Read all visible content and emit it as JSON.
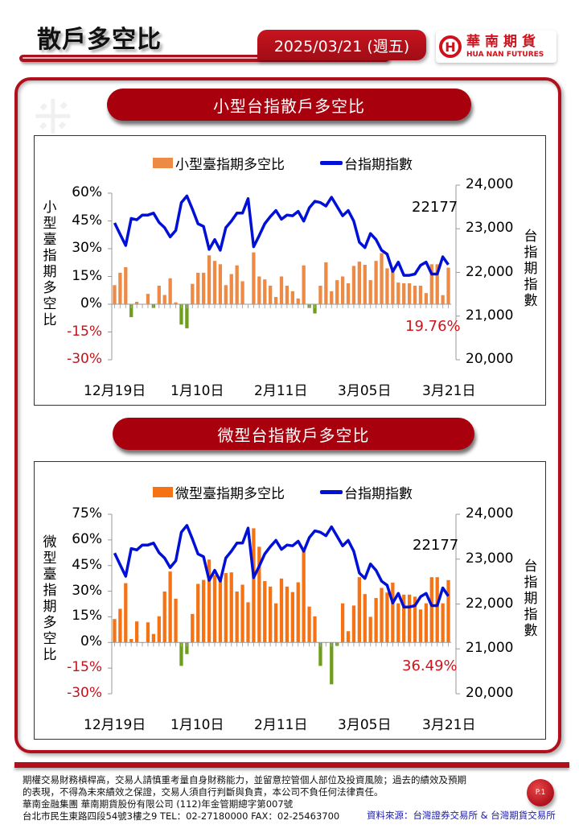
{
  "header": {
    "title": "散戶多空比",
    "date": "2025/03/21 (週五)",
    "logo_zh": "華南期貨",
    "logo_en": "HUA NAN FUTURES"
  },
  "sections": [
    {
      "title": "小型台指散戶多空比",
      "legend_bar": "小型臺指期多空比",
      "legend_line": "台指期指數",
      "left_axis_label": "小型臺指期多空比",
      "right_axis_label": "台指期指數",
      "left_ticks": [
        "60%",
        "45%",
        "30%",
        "15%",
        "0%",
        "-15%",
        "-30%"
      ],
      "right_ticks": [
        "24,000",
        "23,000",
        "22,000",
        "21,000",
        "20,000"
      ],
      "x_ticks": [
        "12月19日",
        "1月10日",
        "2月11日",
        "3月05日",
        "3月21日"
      ],
      "last_index_label": "22177",
      "last_ratio_label": "19.76%"
    },
    {
      "title": "微型台指散戶多空比",
      "legend_bar": "微型臺指期多空比",
      "legend_line": "台指期指數",
      "left_axis_label": "微型臺指期多空比",
      "right_axis_label": "台指期指數",
      "left_ticks": [
        "75%",
        "60%",
        "45%",
        "30%",
        "15%",
        "0%",
        "-15%",
        "-30%"
      ],
      "right_ticks": [
        "24,000",
        "23,000",
        "22,000",
        "21,000",
        "20,000"
      ],
      "x_ticks": [
        "12月19日",
        "1月10日",
        "2月11日",
        "3月05日",
        "3月21日"
      ],
      "last_index_label": "22177",
      "last_ratio_label": "36.49%"
    }
  ],
  "footer": {
    "disclaimer_1": "期權交易財務槓桿高，交易人請慎重考量自身財務能力，並留意控管個人部位及投資風險；過去的績效及預期",
    "disclaimer_2": "的表現，不得為未來績效之保證，交易人須自行判斷與負責，本公司不負任何法律責任。",
    "company": "華南金融集團 華南期貨股份有限公司 (112)年金管期總字第007號",
    "address": "台北市民生東路四段54號3樓之9  TEL：02-27180000  FAX：02-25463700",
    "source": "資料來源：台灣證券交易所 & 台灣期貨交易所",
    "page": "P.1"
  },
  "colors": {
    "brand_red": "#b0101c",
    "bar_mini": "#ed8a45",
    "bar_micro": "#f57314",
    "bar_negative": "#6e9e1c",
    "index_line": "#0010d6",
    "negative_tick": "#c0141c"
  },
  "chart_data": [
    {
      "type": "bar+line",
      "title": "小型台指散戶多空比",
      "x_tick_labels": [
        "12月19日",
        "1月10日",
        "2月11日",
        "3月05日",
        "3月21日"
      ],
      "n_points": 61,
      "legend": [
        "小型臺指期多空比",
        "台指期指數"
      ],
      "ylabel_left": "小型臺指期多空比",
      "ylabel_right": "台指期指數",
      "ylim_left": [
        -30,
        60
      ],
      "ylim_right": [
        20000,
        24000
      ],
      "grid": false,
      "legend_position": "top",
      "series": [
        {
          "name": "小型臺指期多空比",
          "type": "bar",
          "axis": "left",
          "unit": "%",
          "values": [
            10.3,
            17,
            20,
            -7,
            1.3,
            0,
            5.6,
            -2,
            10,
            5,
            14,
            1,
            -11,
            -13,
            11,
            17,
            17,
            26.4,
            23.4,
            21.6,
            10.3,
            16.3,
            21,
            12.4,
            0,
            28,
            15,
            13.4,
            10,
            3.9,
            15,
            10,
            7,
            3.1,
            21,
            -2,
            -5,
            10,
            22.6,
            7,
            13,
            15,
            11.3,
            20.7,
            23,
            21.3,
            13,
            23.4,
            27.6,
            19.4,
            18,
            11.7,
            11.3,
            11.3,
            10,
            10,
            6,
            21.6,
            21.6,
            4.9,
            19.76
          ]
        },
        {
          "name": "台指期指數",
          "type": "line",
          "axis": "right",
          "values": [
            23133,
            22873,
            22618,
            23236,
            23206,
            23315,
            23315,
            23358,
            23145,
            23024,
            22812,
            22964,
            23600,
            23752,
            23448,
            23115,
            23055,
            22527,
            22752,
            22509,
            23024,
            23176,
            23358,
            23358,
            23691,
            22588,
            22842,
            23115,
            23279,
            23418,
            23218,
            23315,
            23297,
            23400,
            23176,
            23479,
            23630,
            23600,
            23521,
            23721,
            23509,
            23297,
            23418,
            23176,
            22691,
            22570,
            22891,
            22752,
            22509,
            22418,
            22024,
            22236,
            21933,
            21933,
            21964,
            22164,
            22236,
            21964,
            21964,
            22358,
            22177
          ]
        }
      ],
      "annotations": [
        "22177",
        "19.76%"
      ]
    },
    {
      "type": "bar+line",
      "title": "微型台指散戶多空比",
      "x_tick_labels": [
        "12月19日",
        "1月10日",
        "2月11日",
        "3月05日",
        "3月21日"
      ],
      "n_points": 61,
      "legend": [
        "微型臺指期多空比",
        "台指期指數"
      ],
      "ylabel_left": "微型臺指期多空比",
      "ylabel_right": "台指期指數",
      "ylim_left": [
        -30,
        75
      ],
      "ylim_right": [
        20000,
        24000
      ],
      "grid": false,
      "legend_position": "top",
      "series": [
        {
          "name": "微型臺指期多空比",
          "type": "bar",
          "axis": "left",
          "unit": "%",
          "values": [
            13.7,
            19.7,
            34.7,
            2,
            12.3,
            0,
            11.8,
            5,
            15.3,
            29.8,
            41.5,
            25.6,
            -13.7,
            -6.8,
            16.7,
            34.3,
            36.6,
            48.5,
            39.5,
            37.4,
            40.6,
            41,
            29.8,
            33.8,
            23.5,
            66.8,
            56,
            35.9,
            32.7,
            22.9,
            37.4,
            32.7,
            29.5,
            35.2,
            53.7,
            21,
            15.3,
            -13.7,
            0,
            -24.5,
            -2,
            22.9,
            6.6,
            21.6,
            38.2,
            28.3,
            15,
            26,
            31.9,
            29.2,
            35,
            22.9,
            28,
            28,
            26.8,
            19.3,
            22.9,
            38.2,
            38.2,
            22.9,
            36.49
          ]
        },
        {
          "name": "台指期指數",
          "type": "line",
          "axis": "right",
          "values": [
            23133,
            22873,
            22618,
            23236,
            23206,
            23315,
            23315,
            23358,
            23145,
            23024,
            22812,
            22964,
            23600,
            23752,
            23448,
            23115,
            23055,
            22527,
            22752,
            22509,
            23024,
            23176,
            23358,
            23358,
            23691,
            22588,
            22842,
            23115,
            23279,
            23418,
            23218,
            23315,
            23297,
            23400,
            23176,
            23479,
            23630,
            23600,
            23521,
            23721,
            23509,
            23297,
            23418,
            23176,
            22691,
            22570,
            22891,
            22752,
            22509,
            22418,
            22024,
            22236,
            21933,
            21933,
            21964,
            22164,
            22236,
            21964,
            21964,
            22358,
            22177
          ]
        }
      ],
      "annotations": [
        "22177",
        "36.49%"
      ]
    }
  ]
}
